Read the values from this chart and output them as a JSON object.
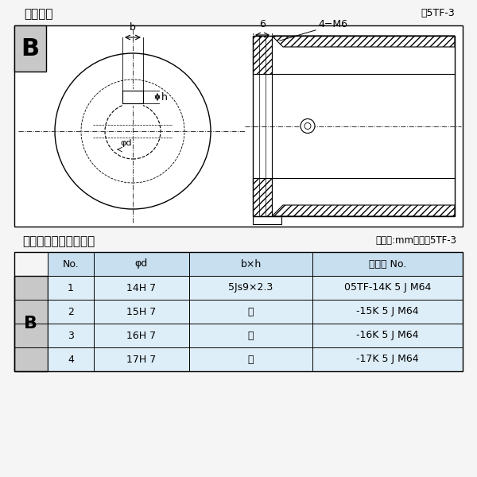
{
  "title_left": "軸穴形状",
  "title_right": "囵5TF-3",
  "table_title_left": "軸穴形状コード一覧表",
  "table_title_right": "（単位:mm）　表5TF-3",
  "bg_color": "#f5f5f5",
  "border_color": "#000000",
  "table_header_bg": "#c8dff0",
  "table_row_bg": "#deeef8",
  "table_header": [
    "No.",
    "φd",
    "b×h",
    "コード No."
  ],
  "table_rows": [
    [
      "1",
      "14H 7",
      "5Js9×2.3",
      "05TF-14K 5 J M64"
    ],
    [
      "2",
      "15H 7",
      "〃",
      "-15K 5 J M64"
    ],
    [
      "3",
      "16H 7",
      "〃",
      "-16K 5 J M64"
    ],
    [
      "4",
      "17H 7",
      "〃",
      "-17K 5 J M64"
    ]
  ],
  "section_label": "B",
  "dim_b": "b",
  "dim_h": "h",
  "dim_phid": "φd",
  "dim_6": "6",
  "dim_4M6": "4−M6",
  "line_color": "#000000",
  "gray_bg": "#c8c8c8",
  "light_gray": "#e8e8e8"
}
